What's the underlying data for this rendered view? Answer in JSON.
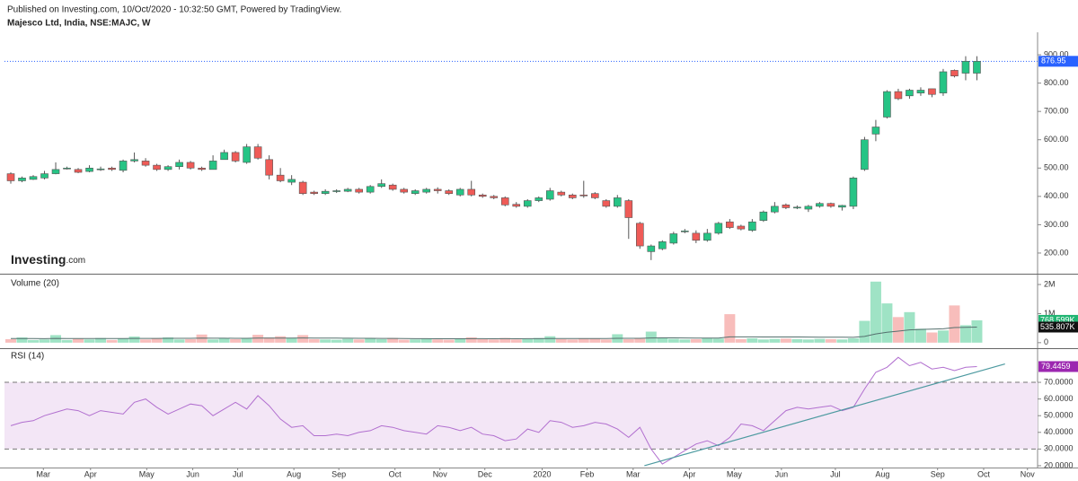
{
  "header": {
    "published": "Published on Investing.com, 10/Oct/2020 - 10:32:50 GMT, Powered by TradingView.",
    "symbol": "Majesco Ltd, India, NSE:MAJC, W"
  },
  "logo": {
    "name": "Investing",
    "suffix": ".com"
  },
  "chart_data": [
    {
      "type": "candlestick",
      "xlim": [
        -0.56,
        91.4
      ],
      "xticks": [
        {
          "value": 2.9,
          "label": "Mar"
        },
        {
          "value": 7.1,
          "label": "Apr"
        },
        {
          "value": 12.1,
          "label": "May"
        },
        {
          "value": 16.2,
          "label": "Jun"
        },
        {
          "value": 20.2,
          "label": "Jul"
        },
        {
          "value": 25.2,
          "label": "Aug"
        },
        {
          "value": 29.2,
          "label": "Sep"
        },
        {
          "value": 34.2,
          "label": "Oct"
        },
        {
          "value": 38.2,
          "label": "Nov"
        },
        {
          "value": 42.2,
          "label": "Dec"
        },
        {
          "value": 47.3,
          "label": "2020"
        },
        {
          "value": 51.3,
          "label": "Feb"
        },
        {
          "value": 55.4,
          "label": "Mar"
        },
        {
          "value": 60.4,
          "label": "Apr"
        },
        {
          "value": 64.4,
          "label": "May"
        },
        {
          "value": 68.6,
          "label": "Jun"
        },
        {
          "value": 73.4,
          "label": "Jul"
        },
        {
          "value": 77.6,
          "label": "Aug"
        },
        {
          "value": 82.5,
          "label": "Sep"
        },
        {
          "value": 86.6,
          "label": "Oct"
        },
        {
          "value": 90.5,
          "label": "Nov"
        }
      ],
      "ylim": [
        127,
        973
      ],
      "yticks": [
        {
          "value": 200,
          "label": "200.00"
        },
        {
          "value": 300,
          "label": "300.00"
        },
        {
          "value": 400,
          "label": "400.00"
        },
        {
          "value": 500,
          "label": "500.00"
        },
        {
          "value": 600,
          "label": "600.00"
        },
        {
          "value": 700,
          "label": "700.00"
        },
        {
          "value": 800,
          "label": "800.00"
        },
        {
          "value": 900,
          "label": "900.00"
        }
      ],
      "up_color": "#26c485",
      "down_color": "#ef5b57",
      "last_color": "#2962ff",
      "open": [
        480,
        455,
        460,
        465,
        480,
        500,
        495,
        488,
        495,
        500,
        492,
        525,
        525,
        510,
        495,
        505,
        520,
        500,
        495,
        530,
        555,
        520,
        575,
        530,
        475,
        450,
        450,
        415,
        410,
        420,
        418,
        425,
        415,
        435,
        440,
        425,
        410,
        415,
        425,
        420,
        405,
        425,
        405,
        400,
        395,
        372,
        365,
        385,
        390,
        415,
        405,
        405,
        410,
        385,
        365,
        385,
        305,
        205,
        215,
        235,
        275,
        270,
        245,
        270,
        310,
        295,
        280,
        315,
        345,
        370,
        360,
        355,
        365,
        375,
        362,
        365,
        495,
        620,
        680,
        770,
        755,
        765,
        780,
        765,
        845,
        835,
        835
      ],
      "high": [
        485,
        470,
        475,
        490,
        520,
        505,
        500,
        510,
        505,
        505,
        530,
        555,
        535,
        515,
        510,
        530,
        525,
        505,
        545,
        565,
        560,
        585,
        585,
        545,
        500,
        475,
        455,
        420,
        425,
        425,
        430,
        430,
        440,
        460,
        445,
        430,
        425,
        430,
        432,
        425,
        430,
        455,
        410,
        405,
        400,
        380,
        390,
        400,
        430,
        420,
        410,
        455,
        415,
        390,
        405,
        390,
        310,
        230,
        245,
        275,
        285,
        280,
        285,
        310,
        320,
        300,
        320,
        350,
        380,
        375,
        368,
        370,
        380,
        378,
        370,
        470,
        610,
        670,
        775,
        780,
        780,
        785,
        780,
        850,
        848,
        895,
        895
      ],
      "low": [
        445,
        450,
        458,
        460,
        478,
        495,
        482,
        485,
        490,
        490,
        485,
        520,
        505,
        490,
        490,
        495,
        495,
        490,
        495,
        530,
        520,
        515,
        530,
        460,
        450,
        440,
        405,
        405,
        405,
        412,
        415,
        410,
        410,
        430,
        420,
        410,
        405,
        410,
        410,
        405,
        400,
        400,
        395,
        390,
        365,
        360,
        360,
        380,
        385,
        400,
        390,
        395,
        390,
        360,
        360,
        250,
        215,
        175,
        210,
        230,
        270,
        235,
        240,
        265,
        285,
        280,
        275,
        310,
        340,
        355,
        355,
        345,
        360,
        360,
        350,
        355,
        490,
        595,
        675,
        740,
        745,
        755,
        750,
        755,
        820,
        810,
        810
      ],
      "close": [
        455,
        465,
        470,
        480,
        495,
        500,
        485,
        500,
        497,
        495,
        525,
        530,
        510,
        495,
        505,
        520,
        500,
        495,
        525,
        555,
        525,
        575,
        535,
        475,
        455,
        460,
        410,
        410,
        418,
        420,
        425,
        415,
        435,
        445,
        425,
        415,
        420,
        425,
        420,
        410,
        425,
        405,
        400,
        395,
        370,
        365,
        385,
        395,
        420,
        405,
        395,
        402,
        395,
        365,
        395,
        325,
        225,
        225,
        240,
        268,
        278,
        245,
        270,
        305,
        290,
        285,
        310,
        345,
        365,
        360,
        362,
        365,
        375,
        365,
        368,
        465,
        600,
        645,
        770,
        745,
        775,
        775,
        760,
        840,
        825,
        876.95,
        876.95
      ]
    },
    {
      "type": "bar",
      "title": "Volume (20)",
      "ylim": [
        -190000,
        2310000
      ],
      "yticks": [
        0,
        {
          "value": 1000000,
          "label": "1M"
        },
        {
          "value": 2000000,
          "label": "2M"
        }
      ],
      "up_color": "#9fe3c5",
      "down_color": "#f8bdbb",
      "ma_color": "#55706e",
      "values": [
        120000,
        180000,
        90000,
        110000,
        260000,
        90000,
        130000,
        110000,
        160000,
        90000,
        140000,
        210000,
        110000,
        150000,
        180000,
        110000,
        120000,
        280000,
        110000,
        150000,
        120000,
        140000,
        270000,
        180000,
        220000,
        150000,
        260000,
        120000,
        110000,
        100000,
        130000,
        110000,
        140000,
        120000,
        160000,
        100000,
        110000,
        130000,
        110000,
        100000,
        140000,
        180000,
        120000,
        110000,
        160000,
        110000,
        120000,
        160000,
        220000,
        120000,
        110000,
        140000,
        150000,
        110000,
        290000,
        120000,
        140000,
        380000,
        170000,
        130000,
        110000,
        120000,
        150000,
        140000,
        980000,
        120000,
        150000,
        110000,
        130000,
        140000,
        120000,
        110000,
        130000,
        120000,
        110000,
        150000,
        750000,
        2100000,
        1350000,
        880000,
        1050000,
        480000,
        350000,
        420000,
        1280000,
        600000,
        768599
      ],
      "ma": [
        140000,
        142000,
        140000,
        138000,
        145000,
        143000,
        142000,
        141000,
        143000,
        140000,
        142000,
        146000,
        145000,
        147000,
        150000,
        148000,
        149000,
        155000,
        152000,
        153000,
        150000,
        151000,
        156000,
        158000,
        160000,
        158000,
        162000,
        160000,
        158000,
        155000,
        152000,
        150000,
        148000,
        146000,
        145000,
        140000,
        138000,
        136000,
        135000,
        133000,
        134000,
        137000,
        136000,
        135000,
        136000,
        135000,
        136000,
        137000,
        141000,
        140000,
        139000,
        140000,
        141000,
        140000,
        148000,
        148000,
        150000,
        162000,
        165000,
        164000,
        162000,
        160000,
        160000,
        158000,
        200000,
        199000,
        198000,
        195000,
        195000,
        196000,
        195000,
        192000,
        190000,
        188000,
        186000,
        185000,
        215000,
        300000,
        360000,
        395000,
        440000,
        455000,
        465000,
        478000,
        520000,
        525000,
        535807
      ],
      "last_value_label": "768.599K",
      "last_ma_label": "535.807K"
    },
    {
      "type": "line",
      "title": "RSI (14)",
      "ylim": [
        18.9,
        89.4
      ],
      "yticks": [
        {
          "value": 20,
          "label": "20.0000"
        },
        {
          "value": 30,
          "label": "30.0000"
        },
        {
          "value": 40,
          "label": "40.0000"
        },
        {
          "value": 50,
          "label": "50.0000"
        },
        {
          "value": 60,
          "label": "60.0000"
        },
        {
          "value": 70,
          "label": "70.0000"
        }
      ],
      "band": [
        30,
        70
      ],
      "band_color": "#f3e6f6",
      "color": "#b16fcf",
      "last_color": "#9c27b0",
      "values": [
        44,
        46,
        47,
        50,
        52,
        54,
        53,
        50,
        53,
        52,
        51,
        58,
        60,
        55,
        51,
        54,
        57,
        56,
        50,
        54,
        58,
        54,
        62,
        56,
        48,
        43,
        44,
        38,
        38,
        39,
        38,
        40,
        41,
        44,
        43,
        41,
        40,
        39,
        44,
        43,
        41,
        43,
        39,
        38,
        35,
        36,
        42,
        40,
        47,
        46,
        43,
        44,
        46,
        45,
        42,
        37,
        43,
        30,
        21,
        25,
        29,
        33,
        35,
        32,
        37,
        45,
        44,
        41,
        47,
        53,
        55,
        54,
        55,
        56,
        53,
        55,
        66,
        76,
        79,
        85,
        80,
        82,
        78,
        79,
        77,
        79,
        79.4459
      ],
      "trendline": {
        "x": [
          56.4,
          88.5
        ],
        "y": [
          20,
          81
        ],
        "color": "#4d9aa0"
      }
    }
  ]
}
